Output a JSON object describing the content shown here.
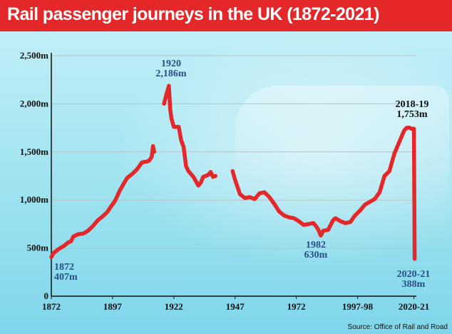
{
  "title": "Rail passenger journeys in the UK (1872-2021)",
  "source": "Source: Office of Rail and Road",
  "colors": {
    "title_bg": "#e4282a",
    "line": "#e4282a",
    "annotation": "#2a4f86"
  },
  "chart_data": {
    "type": "line",
    "title": "Rail passenger journeys in the UK (1872-2021)",
    "xlabel": "",
    "ylabel": "",
    "xlim": [
      1872,
      2021
    ],
    "ylim": [
      0,
      2500
    ],
    "grid": true,
    "y_ticks": [
      {
        "value": 0,
        "label": "0"
      },
      {
        "value": 500,
        "label": "500m"
      },
      {
        "value": 1000,
        "label": "1,000m"
      },
      {
        "value": 1500,
        "label": "1,500m"
      },
      {
        "value": 2000,
        "label": "2,000m"
      },
      {
        "value": 2500,
        "label": "2,500m"
      }
    ],
    "x_ticks": [
      {
        "value": 1872,
        "label": "1872"
      },
      {
        "value": 1897,
        "label": "1897"
      },
      {
        "value": 1922,
        "label": "1922"
      },
      {
        "value": 1947,
        "label": "1947"
      },
      {
        "value": 1972,
        "label": "1972"
      },
      {
        "value": 1997,
        "label": "1997-98"
      },
      {
        "value": 2020,
        "label": "2020-21"
      }
    ],
    "series": [
      {
        "segments": [
          [
            [
              1872,
              407
            ],
            [
              1873,
              450
            ],
            [
              1875,
              490
            ],
            [
              1877,
              520
            ],
            [
              1879,
              560
            ],
            [
              1880,
              570
            ],
            [
              1881,
              620
            ],
            [
              1883,
              645
            ],
            [
              1885,
              650
            ],
            [
              1887,
              680
            ],
            [
              1889,
              730
            ],
            [
              1891,
              790
            ],
            [
              1893,
              830
            ],
            [
              1895,
              880
            ],
            [
              1896,
              920
            ],
            [
              1898,
              990
            ],
            [
              1900,
              1100
            ],
            [
              1902,
              1190
            ],
            [
              1903,
              1230
            ],
            [
              1905,
              1270
            ],
            [
              1907,
              1320
            ],
            [
              1909,
              1390
            ],
            [
              1911,
              1400
            ],
            [
              1912,
              1410
            ],
            [
              1913,
              1450
            ],
            [
              1913.5,
              1560
            ],
            [
              1914,
              1500
            ]
          ],
          [
            [
              1918,
              2000
            ],
            [
              1919,
              2100
            ],
            [
              1920,
              2186
            ],
            [
              1920.5,
              1950
            ],
            [
              1921,
              1850
            ],
            [
              1922,
              1760
            ],
            [
              1924,
              1760
            ],
            [
              1925,
              1620
            ],
            [
              1926,
              1550
            ],
            [
              1927,
              1350
            ],
            [
              1928,
              1300
            ],
            [
              1930,
              1240
            ],
            [
              1932,
              1150
            ],
            [
              1933,
              1180
            ],
            [
              1934,
              1240
            ],
            [
              1936,
              1260
            ],
            [
              1937,
              1290
            ],
            [
              1938,
              1240
            ],
            [
              1939,
              1250
            ]
          ],
          [
            [
              1946,
              1300
            ],
            [
              1947,
              1210
            ],
            [
              1949,
              1060
            ],
            [
              1951,
              1020
            ],
            [
              1953,
              1030
            ],
            [
              1955,
              1010
            ],
            [
              1957,
              1070
            ],
            [
              1959,
              1080
            ],
            [
              1961,
              1030
            ],
            [
              1963,
              960
            ],
            [
              1965,
              880
            ],
            [
              1967,
              840
            ],
            [
              1969,
              820
            ],
            [
              1971,
              810
            ],
            [
              1973,
              780
            ],
            [
              1975,
              740
            ],
            [
              1977,
              750
            ],
            [
              1979,
              760
            ],
            [
              1980,
              730
            ],
            [
              1981,
              690
            ],
            [
              1982,
              630
            ],
            [
              1983,
              680
            ],
            [
              1985,
              690
            ],
            [
              1987,
              790
            ],
            [
              1988,
              810
            ],
            [
              1990,
              780
            ],
            [
              1992,
              760
            ],
            [
              1994,
              770
            ],
            [
              1996,
              840
            ],
            [
              1998,
              890
            ],
            [
              2000,
              950
            ],
            [
              2002,
              980
            ],
            [
              2004,
              1010
            ],
            [
              2006,
              1080
            ],
            [
              2008,
              1250
            ],
            [
              2010,
              1300
            ],
            [
              2012,
              1480
            ],
            [
              2014,
              1600
            ],
            [
              2016,
              1720
            ],
            [
              2017,
              1750
            ],
            [
              2018,
              1753
            ],
            [
              2019,
              1740
            ],
            [
              2019.5,
              1740
            ],
            [
              2020,
              1740
            ],
            [
              2020.3,
              388
            ]
          ]
        ]
      }
    ],
    "annotations": [
      {
        "year": "1872",
        "value": "407m",
        "style": "blue"
      },
      {
        "year": "1920",
        "value": "2,186m",
        "style": "blue"
      },
      {
        "year": "1982",
        "value": "630m",
        "style": "blue"
      },
      {
        "year": "2018-19",
        "value": "1,753m",
        "style": "dark"
      },
      {
        "year": "2020-21",
        "value": "388m",
        "style": "blue"
      }
    ]
  }
}
